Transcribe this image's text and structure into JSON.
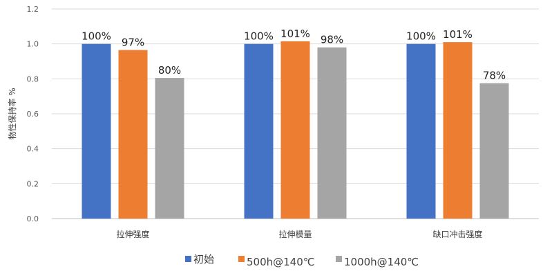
{
  "chart_data": {
    "type": "bar",
    "title": "",
    "xlabel": "",
    "ylabel": "物性保持率 %",
    "ylim": [
      0,
      1.2
    ],
    "yticks": [
      "0.0",
      "0.2",
      "0.4",
      "0.6",
      "0.8",
      "1.0",
      "1.2"
    ],
    "grid": true,
    "legend_position": "bottom",
    "categories": [
      "拉伸强度",
      "拉伸模量",
      "缺口冲击强度"
    ],
    "series": [
      {
        "name": "初始",
        "color": "#4472C4",
        "values": [
          1.0,
          1.0,
          1.0
        ],
        "labels": [
          "100%",
          "100%",
          "100%"
        ]
      },
      {
        "name": "500h@140℃",
        "color": "#ED7D31",
        "values": [
          0.965,
          1.015,
          1.01
        ],
        "labels": [
          "97%",
          "101%",
          "101%"
        ]
      },
      {
        "name": "1000h@140℃",
        "color": "#A5A5A5",
        "values": [
          0.805,
          0.98,
          0.775
        ],
        "labels": [
          "80%",
          "98%",
          "78%"
        ]
      }
    ]
  }
}
